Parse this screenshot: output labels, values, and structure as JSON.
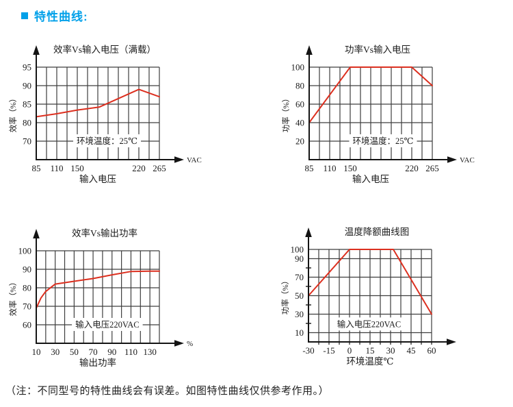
{
  "page": {
    "header": {
      "title": "特性曲线:"
    },
    "note": "（注：不同型号的特性曲线会有误差。如图特性曲线仅供参考作用。）"
  },
  "colors": {
    "accent": "#00a0e9",
    "curve": "#dc2f1f",
    "grid": "#3d3d3d",
    "axis": "#141414",
    "text": "#1a1a1a"
  },
  "chart_data": [
    {
      "type": "line",
      "title": "效率Vs输入电压（满载）",
      "y_axis_label": "效率（%）",
      "x_axis_title": "输入电压",
      "unit_label": "VAC",
      "annotation": {
        "text": "环境温度：25℃",
        "col": 6.9,
        "row": 4
      },
      "cols": 12,
      "rows": 5,
      "y_lines": [
        {
          "v": 95,
          "row": 0
        },
        {
          "v": 90,
          "row": 1
        },
        {
          "v": 85,
          "row": 2
        },
        {
          "v": 80,
          "row": 3
        },
        {
          "v": 70,
          "row": 4
        },
        {
          "v": null,
          "row": 5
        }
      ],
      "x_ticks": [
        {
          "v": 85,
          "col": 0
        },
        {
          "v": 110,
          "col": 2
        },
        {
          "v": 150,
          "col": 4
        },
        {
          "v": 220,
          "col": 10
        },
        {
          "v": 265,
          "col": 12
        }
      ],
      "series": [
        [
          85,
          81.6
        ],
        [
          110,
          82.4
        ],
        [
          150,
          83.4
        ],
        [
          175,
          84.2
        ],
        [
          220,
          89
        ],
        [
          265,
          87
        ]
      ]
    },
    {
      "type": "line",
      "title": "功率Vs输入电压",
      "y_axis_label": "功率（%）",
      "x_axis_title": "输入电压",
      "unit_label": "VAC",
      "annotation": {
        "text": "环境温度：25℃",
        "col": 7.2,
        "row": 4
      },
      "cols": 12,
      "rows": 5,
      "y_lines": [
        {
          "v": 100,
          "row": 0
        },
        {
          "v": 80,
          "row": 1
        },
        {
          "v": 60,
          "row": 2
        },
        {
          "v": 40,
          "row": 3
        },
        {
          "v": 20,
          "row": 4
        },
        {
          "v": null,
          "row": 5
        }
      ],
      "x_ticks": [
        {
          "v": 85,
          "col": 0
        },
        {
          "v": 110,
          "col": 2
        },
        {
          "v": 150,
          "col": 4
        },
        {
          "v": 220,
          "col": 10
        },
        {
          "v": 265,
          "col": 12
        }
      ],
      "series": [
        [
          85,
          40
        ],
        [
          110,
          70
        ],
        [
          150,
          100
        ],
        [
          220,
          100
        ],
        [
          265,
          80
        ]
      ]
    },
    {
      "type": "line",
      "title": "效率Vs输出功率",
      "y_axis_label": "效率（%）",
      "x_axis_title": "输出功率",
      "unit_label": "%",
      "annotation": {
        "text": "输入电压220VAC",
        "col": 7.5,
        "row": 4
      },
      "cols": 13,
      "rows": 5,
      "y_lines": [
        {
          "v": 100,
          "row": 0
        },
        {
          "v": 90,
          "row": 1
        },
        {
          "v": 80,
          "row": 2
        },
        {
          "v": 70,
          "row": 3
        },
        {
          "v": 60,
          "row": 4
        },
        {
          "v": null,
          "row": 5
        }
      ],
      "x_ticks": [
        {
          "v": 10,
          "col": 0
        },
        {
          "v": 30,
          "col": 2
        },
        {
          "v": 50,
          "col": 4
        },
        {
          "v": 70,
          "col": 6
        },
        {
          "v": 90,
          "col": 8
        },
        {
          "v": 110,
          "col": 10
        },
        {
          "v": 130,
          "col": 12
        }
      ],
      "series": [
        [
          10,
          69
        ],
        [
          15,
          74.5
        ],
        [
          20,
          78
        ],
        [
          30,
          82
        ],
        [
          50,
          83.5
        ],
        [
          70,
          85
        ],
        [
          90,
          87
        ],
        [
          110,
          88.8
        ],
        [
          130,
          89
        ],
        [
          140,
          89
        ]
      ]
    },
    {
      "type": "line",
      "title": "温度降额曲线图",
      "y_axis_label": "功率（%）",
      "x_axis_title": "环境温度℃",
      "unit_label": "",
      "annotation": {
        "text": "输入电压220VAC",
        "col": 5.9,
        "row": 4.05
      },
      "cols": 12,
      "rows": 5,
      "y_minor_rows": [
        1,
        2,
        3,
        4
      ],
      "x_minor": true,
      "y_lines": [
        {
          "v": 100,
          "row": 0
        },
        {
          "v": 90,
          "row": 0.5
        },
        {
          "v": 70,
          "row": 1.5
        },
        {
          "v": 50,
          "row": 2.5
        },
        {
          "v": 30,
          "row": 3.5
        },
        {
          "v": 10,
          "row": 4.5
        },
        {
          "v": null,
          "row": 5
        }
      ],
      "x_ticks": [
        {
          "v": -30,
          "col": 0
        },
        {
          "v": -15,
          "col": 2
        },
        {
          "v": 0,
          "col": 4
        },
        {
          "v": 15,
          "col": 6
        },
        {
          "v": 30,
          "col": 8
        },
        {
          "v": 45,
          "col": 10
        },
        {
          "v": 60,
          "col": 12
        }
      ],
      "series": [
        [
          -30,
          50
        ],
        [
          -15,
          75
        ],
        [
          0,
          100
        ],
        [
          32,
          100
        ],
        [
          60,
          30
        ]
      ]
    }
  ]
}
